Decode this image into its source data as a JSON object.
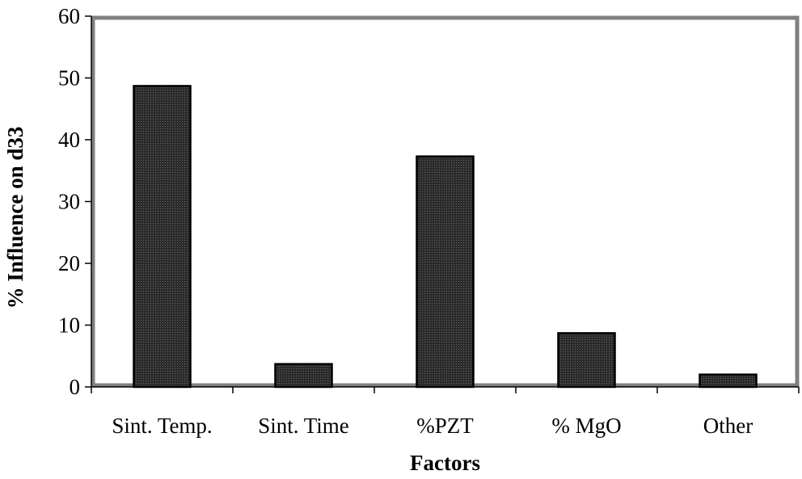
{
  "chart_data": {
    "type": "bar",
    "title": "",
    "xlabel": "Factors",
    "ylabel": "% Influence on d33",
    "categories": [
      "Sint. Temp.",
      "Sint. Time",
      "%PZT",
      "% MgO",
      "Other"
    ],
    "values": [
      48.7,
      3.7,
      37.3,
      8.7,
      2.0
    ],
    "ylim": [
      0,
      60
    ],
    "yticks": [
      0,
      10,
      20,
      30,
      40,
      50,
      60
    ],
    "grid": false,
    "legend": "none",
    "colors": {
      "bar_fill": "#2a2a2a",
      "plot_frame": "#808080",
      "axis": "#000000"
    }
  }
}
